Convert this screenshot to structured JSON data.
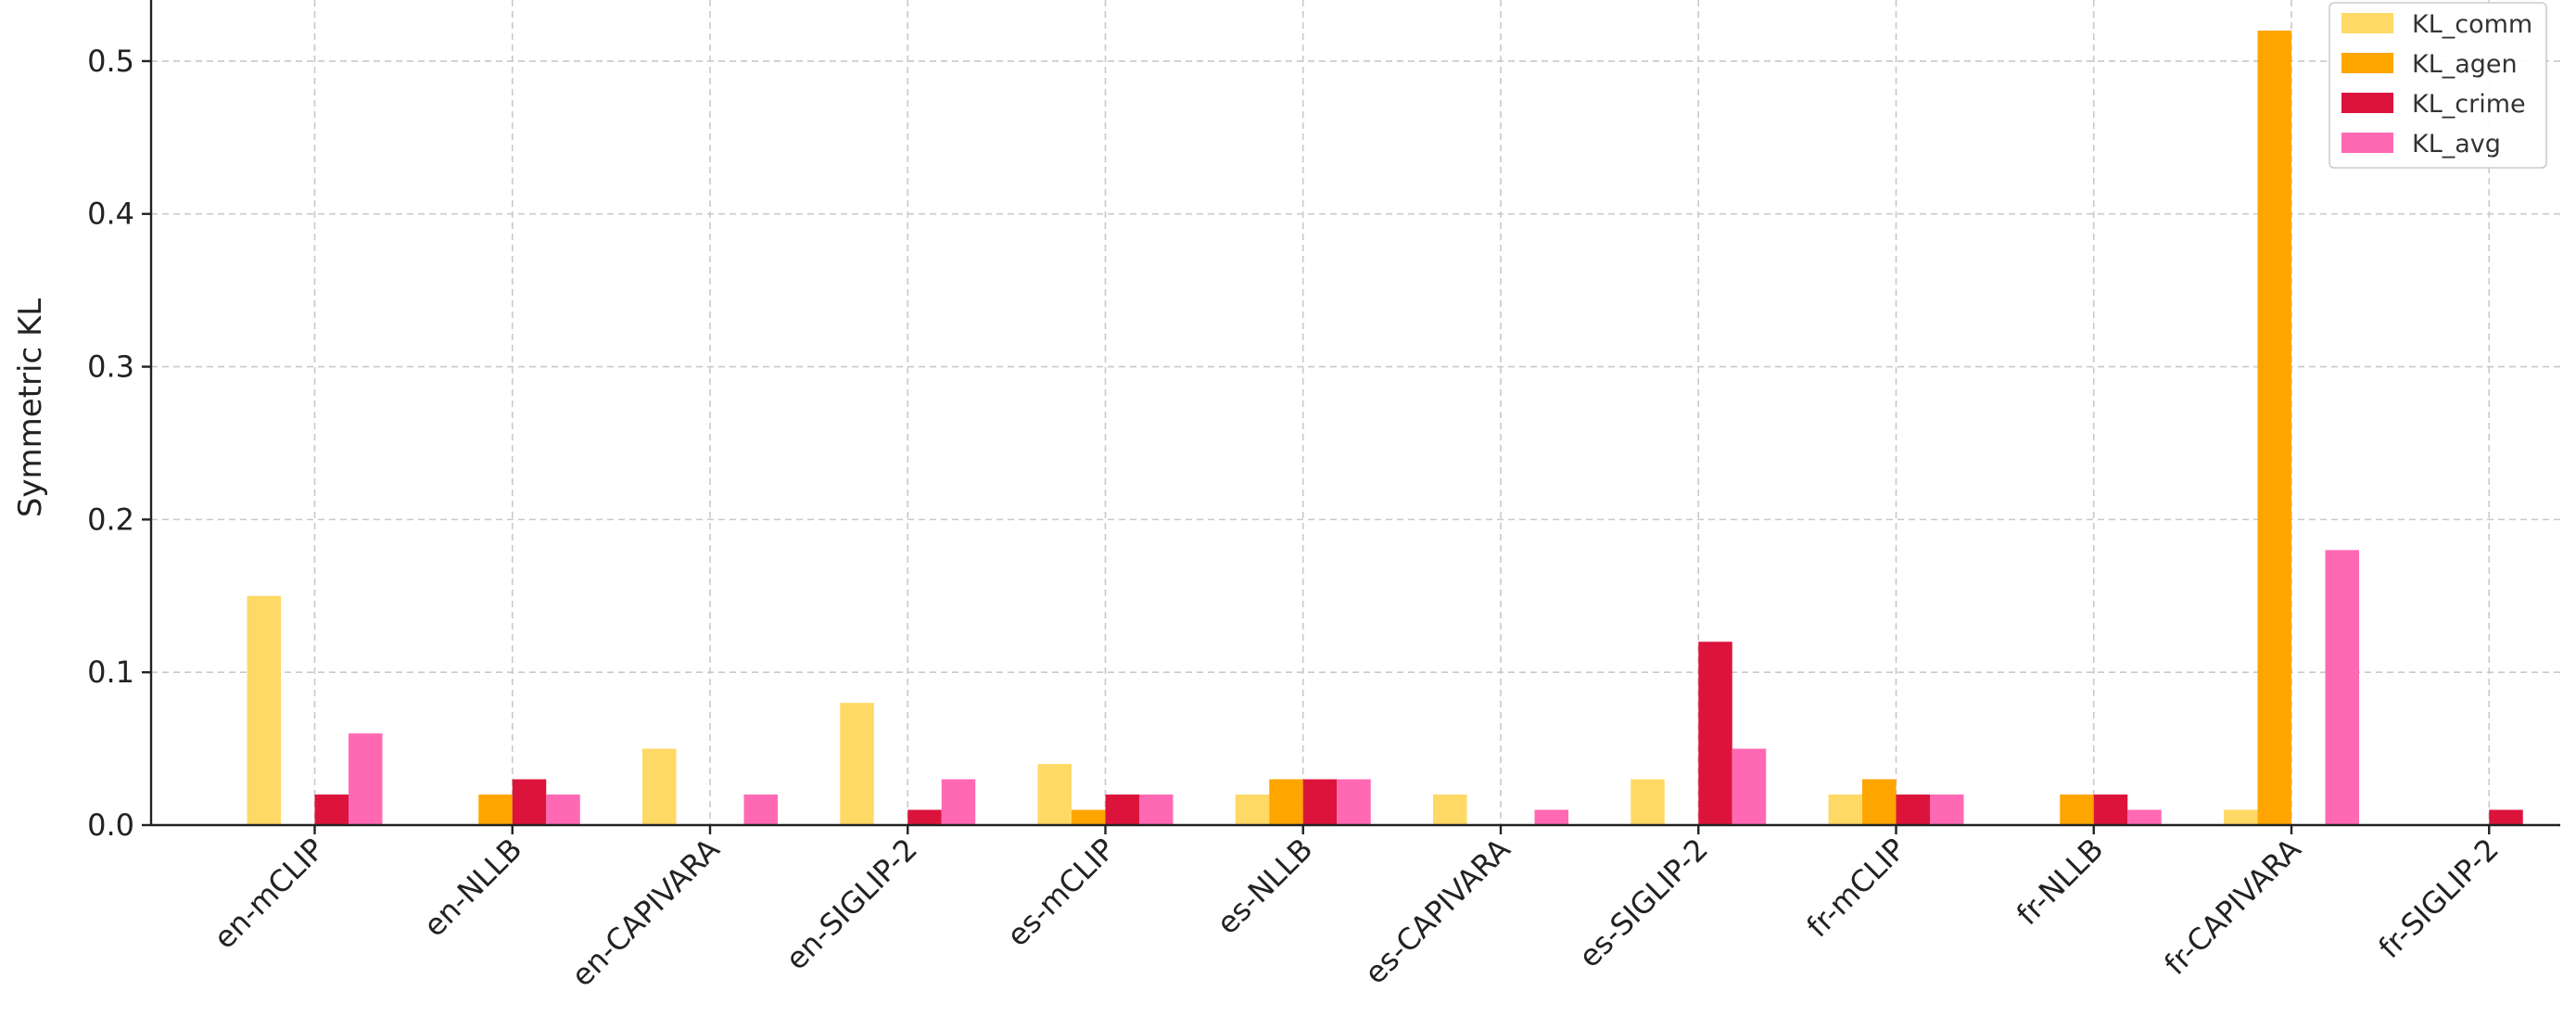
{
  "chart_data": {
    "type": "bar",
    "title": "",
    "xlabel": "",
    "ylabel": "Symmetric KL",
    "ylim": [
      0,
      0.54
    ],
    "yticks": [
      0.0,
      0.1,
      0.2,
      0.3,
      0.4,
      0.5
    ],
    "ytick_labels": [
      "0.0",
      "0.1",
      "0.2",
      "0.3",
      "0.4",
      "0.5"
    ],
    "grid": true,
    "legend_position": "top-right",
    "categories": [
      "en-mCLIP",
      "en-NLLB",
      "en-CAPIVARA",
      "en-SIGLIP-2",
      "es-mCLIP",
      "es-NLLB",
      "es-CAPIVARA",
      "es-SIGLIP-2",
      "fr-mCLIP",
      "fr-NLLB",
      "fr-CAPIVARA",
      "fr-SIGLIP-2"
    ],
    "series": [
      {
        "name": "KL_comm",
        "color": "#FFD966",
        "values": [
          0.15,
          0.0,
          0.05,
          0.08,
          0.04,
          0.02,
          0.02,
          0.03,
          0.02,
          0.0,
          0.01,
          0.0
        ]
      },
      {
        "name": "KL_agen",
        "color": "#FFA500",
        "values": [
          0.0,
          0.02,
          0.0,
          0.0,
          0.01,
          0.03,
          0.0,
          0.0,
          0.03,
          0.02,
          0.52,
          0.0
        ]
      },
      {
        "name": "KL_crime",
        "color": "#DC143C",
        "values": [
          0.02,
          0.03,
          0.0,
          0.01,
          0.02,
          0.03,
          0.0,
          0.12,
          0.02,
          0.02,
          0.0,
          0.01
        ]
      },
      {
        "name": "KL_avg",
        "color": "#FF69B4",
        "values": [
          0.06,
          0.02,
          0.02,
          0.03,
          0.02,
          0.03,
          0.01,
          0.05,
          0.02,
          0.01,
          0.18,
          0.0
        ]
      }
    ]
  }
}
